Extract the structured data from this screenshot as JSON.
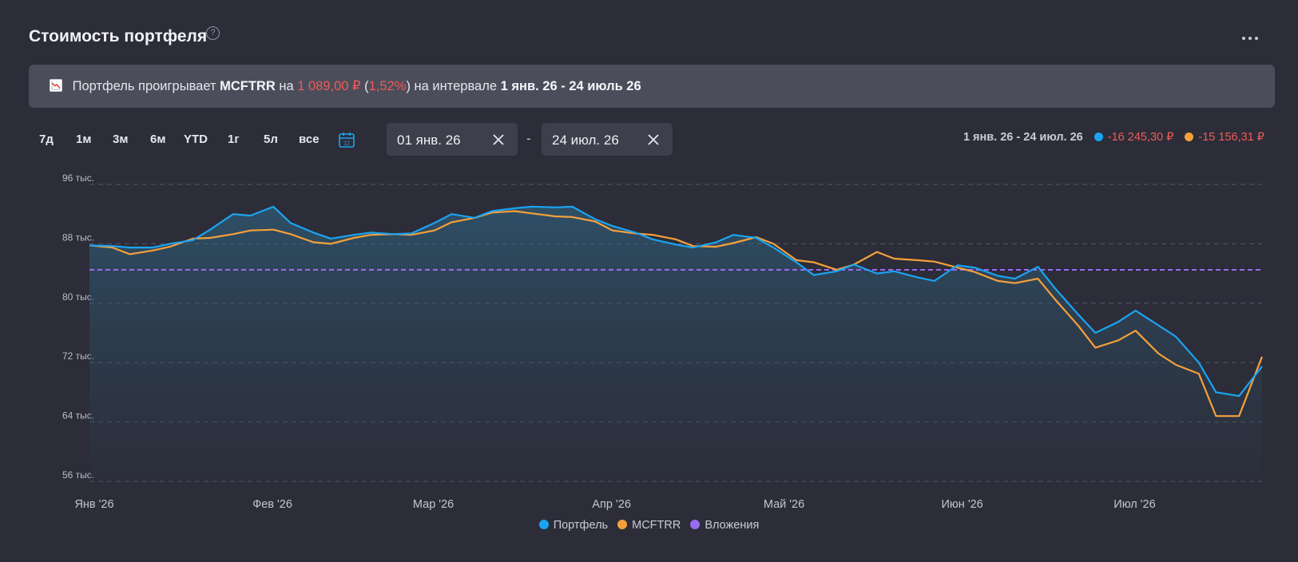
{
  "header": {
    "title": "Стоимость портфеля",
    "help": "?"
  },
  "banner": {
    "icon": "chart-down-icon",
    "prefix": "Портфель проигрывает",
    "benchmark": "MCFTRR",
    "word_on": "на",
    "diff_value": "1 089,00 ₽",
    "open_paren": "(",
    "diff_percent": "1,52%",
    "close_paren": ")",
    "interval_text": "на интервале",
    "interval": "1 янв. 26 - 24 июль 26"
  },
  "periods": [
    "7д",
    "1м",
    "3м",
    "6м",
    "YTD",
    "1г",
    "5л",
    "все"
  ],
  "date_range": {
    "from": "01 янв. 26",
    "separator": "-",
    "to": "24 июл. 26"
  },
  "summary": {
    "range": "1 янв. 26 - 24 июл. 26",
    "portfolio_change": "-16 245,30 ₽",
    "benchmark_change": "-15 156,31 ₽"
  },
  "colors": {
    "portfolio": "#1ba4f2",
    "benchmark": "#f5a03c",
    "investments": "#9a6bf0",
    "negative": "#f05b57"
  },
  "chart_data": {
    "type": "line",
    "y_ticks": [
      "96 тыс.",
      "88 тыс.",
      "80 тыс.",
      "72 тыс.",
      "64 тыс.",
      "56 тыс."
    ],
    "y_tick_values": [
      96000,
      88000,
      80000,
      72000,
      64000,
      56000
    ],
    "ylim": [
      56000,
      96000
    ],
    "x_ticks": [
      "Янв '26",
      "Фев '26",
      "Мар '26",
      "Апр '26",
      "Май '26",
      "Июн '26",
      "Июл '26"
    ],
    "x_tick_dates": [
      "2026-01-01",
      "2026-02-01",
      "2026-03-01",
      "2026-04-01",
      "2026-05-01",
      "2026-06-01",
      "2026-07-01"
    ],
    "x_range": [
      "2026-01-01",
      "2026-07-24"
    ],
    "grid": true,
    "legend_position": "bottom",
    "series": [
      {
        "name": "Портфель",
        "dates": [
          "2026-01-01",
          "2026-01-05",
          "2026-01-08",
          "2026-01-12",
          "2026-01-15",
          "2026-01-19",
          "2026-01-22",
          "2026-01-26",
          "2026-01-29",
          "2026-02-02",
          "2026-02-05",
          "2026-02-09",
          "2026-02-12",
          "2026-02-16",
          "2026-02-19",
          "2026-02-23",
          "2026-02-26",
          "2026-03-02",
          "2026-03-05",
          "2026-03-09",
          "2026-03-12",
          "2026-03-16",
          "2026-03-19",
          "2026-03-23",
          "2026-03-26",
          "2026-03-30",
          "2026-04-02",
          "2026-04-06",
          "2026-04-09",
          "2026-04-13",
          "2026-04-16",
          "2026-04-20",
          "2026-04-23",
          "2026-04-27",
          "2026-04-30",
          "2026-05-04",
          "2026-05-07",
          "2026-05-11",
          "2026-05-14",
          "2026-05-18",
          "2026-05-21",
          "2026-05-25",
          "2026-05-28",
          "2026-06-01",
          "2026-06-04",
          "2026-06-08",
          "2026-06-11",
          "2026-06-15",
          "2026-06-18",
          "2026-06-22",
          "2026-06-25",
          "2026-06-29",
          "2026-07-02",
          "2026-07-06",
          "2026-07-09",
          "2026-07-13",
          "2026-07-16",
          "2026-07-20",
          "2026-07-24"
        ],
        "values": [
          87800,
          87700,
          87500,
          87500,
          88000,
          88500,
          89900,
          92000,
          91800,
          93000,
          90800,
          89500,
          88700,
          89200,
          89500,
          89300,
          89400,
          90800,
          92000,
          91500,
          92400,
          92800,
          93000,
          92900,
          93000,
          91300,
          90400,
          89500,
          88600,
          87900,
          87500,
          88200,
          89200,
          88800,
          87500,
          85500,
          83800,
          84300,
          85200,
          84000,
          84300,
          83500,
          83000,
          85100,
          84800,
          83700,
          83300,
          84900,
          82000,
          78500,
          76000,
          77500,
          79000,
          77000,
          75500,
          72000,
          68000,
          67500,
          71500
        ]
      },
      {
        "name": "MCFTRR",
        "dates": [
          "2026-01-01",
          "2026-01-05",
          "2026-01-08",
          "2026-01-12",
          "2026-01-15",
          "2026-01-19",
          "2026-01-22",
          "2026-01-26",
          "2026-01-29",
          "2026-02-02",
          "2026-02-05",
          "2026-02-09",
          "2026-02-12",
          "2026-02-16",
          "2026-02-19",
          "2026-02-23",
          "2026-02-26",
          "2026-03-02",
          "2026-03-05",
          "2026-03-09",
          "2026-03-12",
          "2026-03-16",
          "2026-03-19",
          "2026-03-23",
          "2026-03-26",
          "2026-03-30",
          "2026-04-02",
          "2026-04-06",
          "2026-04-09",
          "2026-04-13",
          "2026-04-16",
          "2026-04-20",
          "2026-04-23",
          "2026-04-27",
          "2026-04-30",
          "2026-05-04",
          "2026-05-07",
          "2026-05-11",
          "2026-05-14",
          "2026-05-18",
          "2026-05-21",
          "2026-05-25",
          "2026-05-28",
          "2026-06-01",
          "2026-06-04",
          "2026-06-08",
          "2026-06-11",
          "2026-06-15",
          "2026-06-18",
          "2026-06-22",
          "2026-06-25",
          "2026-06-29",
          "2026-07-02",
          "2026-07-06",
          "2026-07-09",
          "2026-07-13",
          "2026-07-16",
          "2026-07-20",
          "2026-07-24"
        ],
        "values": [
          87800,
          87500,
          86600,
          87100,
          87600,
          88700,
          88800,
          89300,
          89800,
          89900,
          89300,
          88200,
          88000,
          88800,
          89200,
          89300,
          89200,
          89800,
          90900,
          91500,
          92200,
          92400,
          92100,
          91700,
          91600,
          91000,
          89800,
          89400,
          89200,
          88600,
          87700,
          87600,
          88100,
          88900,
          88000,
          85800,
          85500,
          84500,
          85200,
          86900,
          86000,
          85800,
          85600,
          84800,
          84200,
          83000,
          82700,
          83300,
          80500,
          77000,
          74000,
          75000,
          76300,
          73200,
          71700,
          70500,
          64800,
          64800,
          72800
        ]
      },
      {
        "name": "Вложения",
        "dates": [
          "2026-01-01",
          "2026-07-24"
        ],
        "values": [
          84500,
          84500
        ]
      }
    ]
  },
  "legend": [
    {
      "label": "Портфель",
      "color": "#1ba4f2"
    },
    {
      "label": "MCFTRR",
      "color": "#f5a03c"
    },
    {
      "label": "Вложения",
      "color": "#9a6bf0"
    }
  ]
}
